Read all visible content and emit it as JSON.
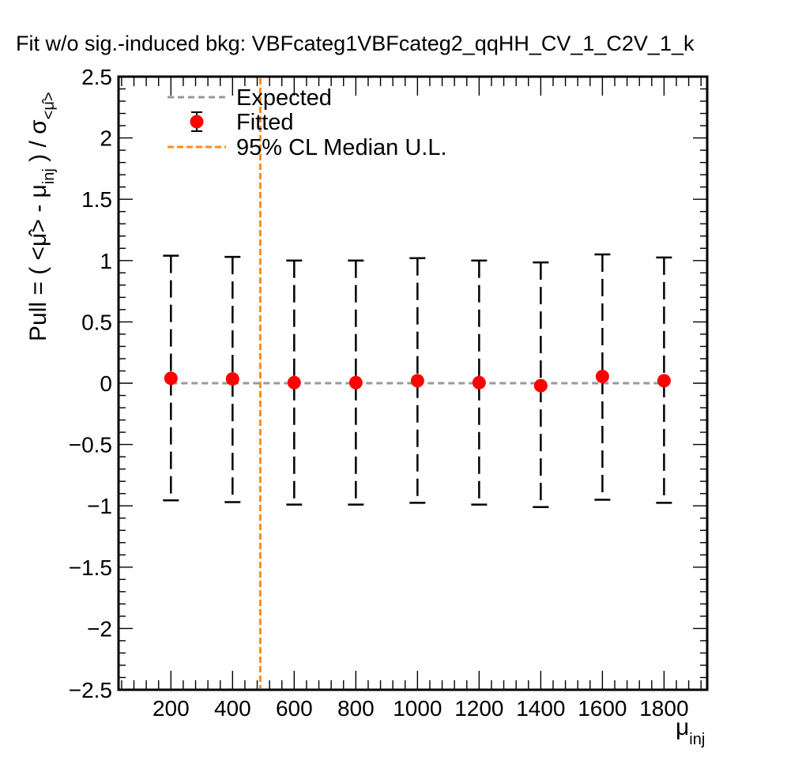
{
  "title": "Fit w/o sig.-induced bkg: VBFcateg1VBFcateg2_qqHH_CV_1_C2V_1_k",
  "chart_data": {
    "type": "scatter",
    "xlabel": "μinj",
    "ylabel": "Pull = ( <μ̂> - μinj ) / σ<μ̂>",
    "xlim": [
      30,
      1940
    ],
    "ylim": [
      -2.5,
      2.5
    ],
    "x_ticks": [
      200,
      400,
      600,
      800,
      1000,
      1200,
      1400,
      1600,
      1800
    ],
    "x_tick_labels": [
      "200",
      "400",
      "600",
      "800",
      "1000",
      "1200",
      "1400",
      "1600",
      "1800"
    ],
    "y_ticks": [
      -2.5,
      -2,
      -1.5,
      -1,
      -0.5,
      0,
      0.5,
      1,
      1.5,
      2,
      2.5
    ],
    "y_tick_labels": [
      "−2.5",
      "−2",
      "−1.5",
      "−1",
      "−0.5",
      "0",
      "0.5",
      "1",
      "1.5",
      "2",
      "2.5"
    ],
    "legend_position": "top-left",
    "legend": [
      "Expected",
      "Fitted",
      "95% CL Median U.L."
    ],
    "grid": false,
    "series": [
      {
        "name": "Fitted",
        "color": "#ff0000",
        "x": [
          200,
          400,
          600,
          800,
          1000,
          1200,
          1400,
          1600,
          1800
        ],
        "y": [
          0.04,
          0.035,
          0.005,
          0.005,
          0.02,
          0.005,
          -0.02,
          0.055,
          0.02
        ],
        "err_low": [
          -0.955,
          -0.97,
          -0.99,
          -0.99,
          -0.975,
          -0.99,
          -1.01,
          -0.95,
          -0.975
        ],
        "err_high": [
          1.04,
          1.03,
          1.0,
          1.0,
          1.02,
          1.0,
          0.985,
          1.05,
          1.025
        ]
      }
    ],
    "expected_line": {
      "name": "Expected",
      "y": 0,
      "x_range": [
        200,
        1800
      ],
      "color": "#999999"
    },
    "median_ul_line": {
      "name": "95% CL Median U.L.",
      "x": 490,
      "color": "#ff8c1a"
    }
  }
}
